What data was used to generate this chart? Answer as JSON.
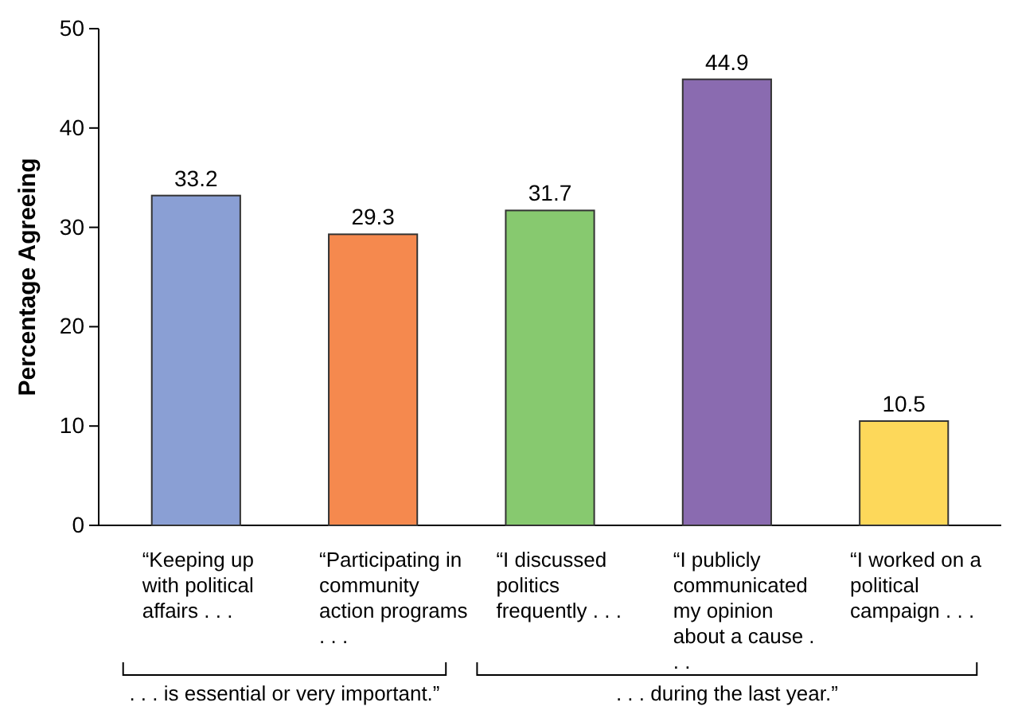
{
  "chart_data": {
    "type": "bar",
    "ylabel": "Percentage Agreeing",
    "categories": [
      "“Keeping up with political affairs . . .",
      "“Participating in community action programs . . .",
      "“I discussed politics frequently . . .",
      "“I publicly communicated my opinion about a cause . . .",
      "“I worked on a political campaign . . ."
    ],
    "values": [
      33.2,
      29.3,
      31.7,
      44.9,
      10.5
    ],
    "colors": [
      "#8a9fd4",
      "#f5894e",
      "#87c96f",
      "#8a6bb0",
      "#fdd85a"
    ],
    "ylim": [
      0,
      50
    ],
    "yticks": [
      0,
      10,
      20,
      30,
      40,
      50
    ],
    "grid": false,
    "data_labels": true,
    "annotations": [
      ". . . is essential or very important.”",
      ". . . during the last year.”"
    ]
  }
}
